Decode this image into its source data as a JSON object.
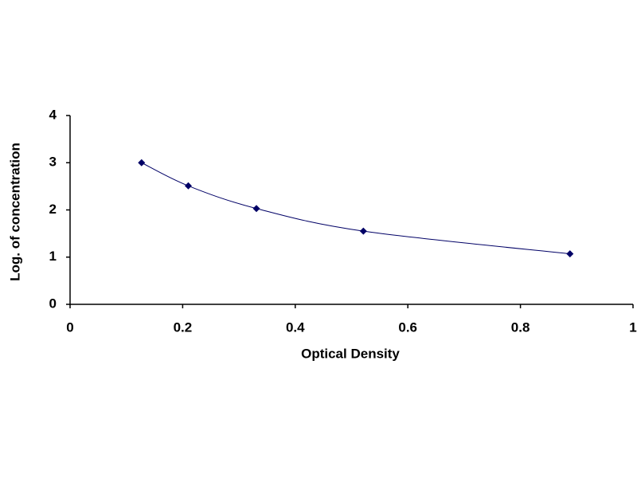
{
  "chart_data": {
    "type": "line",
    "xlabel": "Optical Density",
    "ylabel": "Log. of concentration",
    "x": [
      0.127,
      0.21,
      0.331,
      0.521,
      0.888
    ],
    "values": [
      3.0,
      2.51,
      2.03,
      1.55,
      1.07
    ],
    "color": "#000066",
    "marker": "diamond",
    "smooth": true,
    "grid": false,
    "xlim": [
      0,
      1
    ],
    "xticks": [
      0,
      0.2,
      0.4,
      0.6,
      0.8,
      1
    ],
    "ylim": [
      0,
      4
    ],
    "yticks": [
      0,
      1,
      2,
      3,
      4
    ]
  }
}
